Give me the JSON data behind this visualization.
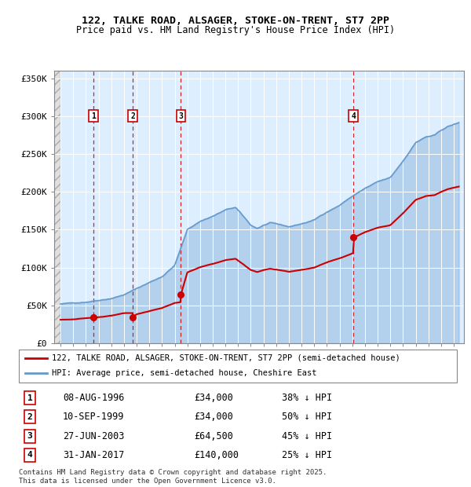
{
  "title_line1": "122, TALKE ROAD, ALSAGER, STOKE-ON-TRENT, ST7 2PP",
  "title_line2": "Price paid vs. HM Land Registry's House Price Index (HPI)",
  "legend_line1": "122, TALKE ROAD, ALSAGER, STOKE-ON-TRENT, ST7 2PP (semi-detached house)",
  "legend_line2": "HPI: Average price, semi-detached house, Cheshire East",
  "footer": "Contains HM Land Registry data © Crown copyright and database right 2025.\nThis data is licensed under the Open Government Licence v3.0.",
  "sale_color": "#cc0000",
  "hpi_color": "#6699cc",
  "hpi_fill_color": "#ddeeff",
  "grid_color": "#aabbcc",
  "sales": [
    {
      "num": 1,
      "date_year": 1996.6,
      "price": 34000,
      "label": "08-AUG-1996",
      "price_str": "£34,000",
      "pct": "38% ↓ HPI"
    },
    {
      "num": 2,
      "date_year": 1999.69,
      "price": 34000,
      "label": "10-SEP-1999",
      "price_str": "£34,000",
      "pct": "50% ↓ HPI"
    },
    {
      "num": 3,
      "date_year": 2003.49,
      "price": 64500,
      "label": "27-JUN-2003",
      "price_str": "£64,500",
      "pct": "45% ↓ HPI"
    },
    {
      "num": 4,
      "date_year": 2017.08,
      "price": 140000,
      "label": "31-JAN-2017",
      "price_str": "£140,000",
      "pct": "25% ↓ HPI"
    }
  ],
  "ylim": [
    0,
    360000
  ],
  "yticks": [
    0,
    50000,
    100000,
    150000,
    200000,
    250000,
    300000,
    350000
  ],
  "ytick_labels": [
    "£0",
    "£50K",
    "£100K",
    "£150K",
    "£200K",
    "£250K",
    "£300K",
    "£350K"
  ],
  "xlim_start": 1993.5,
  "xlim_end": 2025.8,
  "hpi_anchors_x": [
    1994.0,
    1995.0,
    1996.0,
    1997.0,
    1998.0,
    1999.0,
    2000.0,
    2001.0,
    2002.0,
    2003.0,
    2004.0,
    2005.0,
    2006.0,
    2007.0,
    2007.8,
    2008.5,
    2009.0,
    2009.5,
    2010.0,
    2010.5,
    2011.0,
    2012.0,
    2013.0,
    2014.0,
    2015.0,
    2016.0,
    2017.0,
    2018.0,
    2019.0,
    2020.0,
    2021.0,
    2022.0,
    2022.8,
    2023.5,
    2024.0,
    2024.5,
    2025.4
  ],
  "hpi_anchors_y": [
    52000,
    53000,
    55000,
    58000,
    61000,
    66000,
    74000,
    82000,
    90000,
    105000,
    152000,
    163000,
    170000,
    178000,
    181000,
    167000,
    157000,
    153000,
    157000,
    160000,
    158000,
    154000,
    158000,
    163000,
    174000,
    183000,
    195000,
    205000,
    213000,
    218000,
    240000,
    265000,
    272000,
    274000,
    280000,
    285000,
    290000
  ],
  "hpi_index_x": [
    1994.0,
    1995.0,
    1996.0,
    1997.0,
    1998.0,
    1999.0,
    1999.69,
    2000.0,
    2001.0,
    2002.0,
    2003.0,
    2003.49,
    2004.0,
    2005.0,
    2006.0,
    2007.0,
    2007.8,
    2008.5,
    2009.0,
    2009.5,
    2010.0,
    2010.5,
    2011.0,
    2012.0,
    2013.0,
    2014.0,
    2015.0,
    2016.0,
    2017.08,
    2018.0,
    2019.0,
    2020.0,
    2021.0,
    2022.0,
    2022.8,
    2023.5,
    2024.0,
    2024.5,
    2025.4
  ],
  "hpi_index_y": [
    1.0,
    1.019,
    1.058,
    1.115,
    1.173,
    1.269,
    1.269,
    1.423,
    1.577,
    1.731,
    1.981,
    2.019,
    2.923,
    3.135,
    3.269,
    3.423,
    3.481,
    3.212,
    3.019,
    2.942,
    3.019,
    3.077,
    3.038,
    2.962,
    3.038,
    3.135,
    3.346,
    3.519,
    3.75,
    3.942,
    4.096,
    4.192,
    4.615,
    5.096,
    5.231,
    5.269,
    5.385,
    5.481,
    5.577
  ]
}
